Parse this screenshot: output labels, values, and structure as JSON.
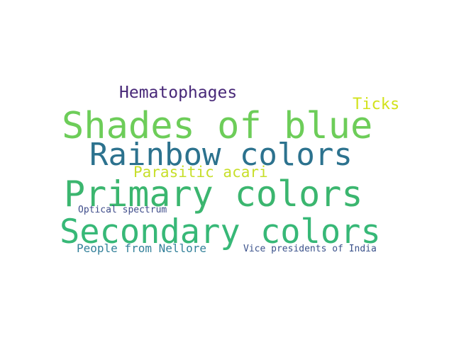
{
  "words": [
    {
      "text": "Shades of blue",
      "color": "#6dcd59"
    },
    {
      "text": "Rainbow colors",
      "color": "#2c728e"
    },
    {
      "text": "Primary colors",
      "color": "#3bb66f"
    },
    {
      "text": "Secondary colors",
      "color": "#37b877"
    },
    {
      "text": "Hematophages",
      "color": "#482878"
    },
    {
      "text": "Ticks",
      "color": "#d2e21b"
    },
    {
      "text": "Parasitic acari",
      "color": "#c7df2a"
    },
    {
      "text": "Optical spectrum",
      "color": "#3e4c8a"
    },
    {
      "text": "People from Nellore",
      "color": "#33809a"
    },
    {
      "text": "Vice presidents of India",
      "color": "#3b528b"
    }
  ]
}
